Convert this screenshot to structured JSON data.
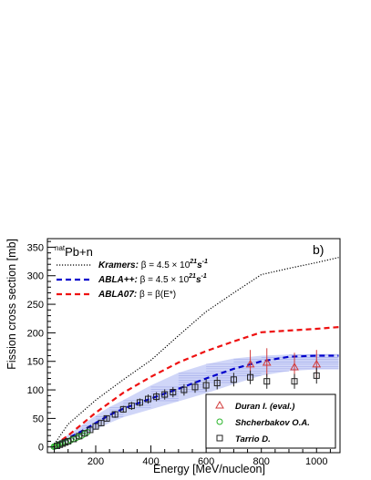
{
  "chart_data": {
    "type": "line",
    "panel_label": "b)",
    "annotation": {
      "sup": "nat",
      "main": "Pb+n"
    },
    "xlabel": "Energy [MeV/nucleon]",
    "ylabel": "Fission cross section [mb]",
    "xlim": [
      25,
      1085
    ],
    "ylim": [
      -10,
      365
    ],
    "xticks": [
      200,
      400,
      600,
      800,
      1000
    ],
    "yticks": [
      0,
      50,
      100,
      150,
      200,
      250,
      300,
      350
    ],
    "grid": false,
    "series": [
      {
        "label": "Kramers:",
        "formula": {
          "pre": "β = 4.5 × 10",
          "sup": "21",
          "post": "s",
          "sup2": "-1"
        },
        "style": "dotted",
        "color": "#000000",
        "x": [
          50,
          100,
          200,
          300,
          400,
          500,
          600,
          700,
          800,
          900,
          1000,
          1080
        ],
        "y": [
          5,
          40,
          82,
          118,
          152,
          195,
          237,
          270,
          302,
          313,
          323,
          332
        ]
      },
      {
        "label": "ABLA++:",
        "formula": {
          "pre": "β = 4.5 × 10",
          "sup": "21",
          "post": "s",
          "sup2": "-1"
        },
        "style": "dashed",
        "color": "#0000cc",
        "x": [
          50,
          100,
          150,
          200,
          250,
          300,
          400,
          500,
          600,
          700,
          800,
          900,
          1000,
          1080
        ],
        "y": [
          3,
          15,
          28,
          42,
          56,
          67,
          85,
          102,
          120,
          137,
          150,
          158,
          160,
          160
        ],
        "band_upper": [
          6,
          21,
          38,
          55,
          70,
          82,
          108,
          130,
          145,
          155,
          160,
          162,
          163,
          163
        ],
        "band_lower": [
          1,
          10,
          20,
          30,
          42,
          52,
          66,
          80,
          94,
          110,
          125,
          133,
          136,
          136
        ]
      },
      {
        "label": "ABLA07:",
        "formula": {
          "pre": "β = β(E*)",
          "sup": "",
          "post": "",
          "sup2": ""
        },
        "style": "dashed",
        "color": "#ee1111",
        "x": [
          50,
          100,
          200,
          300,
          400,
          500,
          600,
          700,
          800,
          900,
          1000,
          1080
        ],
        "y": [
          3,
          20,
          60,
          95,
          123,
          148,
          168,
          185,
          201,
          204,
          207,
          210
        ]
      }
    ],
    "points": [
      {
        "label": "Duran I. (eval.)",
        "marker": "triangle",
        "color": "#d23b3b",
        "x": [
          760,
          820,
          920,
          1000
        ],
        "y": [
          145,
          148,
          140,
          145
        ],
        "err": [
          25,
          25,
          25,
          25
        ]
      },
      {
        "label": "Shcherbakov O.A.",
        "marker": "circle",
        "color": "#2ab52a",
        "x": [
          48,
          52,
          56,
          60,
          65,
          70,
          75,
          80,
          90,
          100,
          110,
          120,
          130,
          140,
          150,
          160,
          170
        ],
        "y": [
          0.5,
          1,
          2,
          3,
          4,
          5,
          6,
          7,
          8,
          10,
          12,
          14,
          16,
          18,
          20,
          23,
          26
        ],
        "err": []
      },
      {
        "label": "Tarrio D.",
        "marker": "square",
        "color": "#222222",
        "x": [
          60,
          70,
          80,
          90,
          100,
          120,
          140,
          160,
          180,
          200,
          220,
          240,
          270,
          300,
          330,
          360,
          390,
          420,
          450,
          480,
          520,
          560,
          600,
          640,
          700,
          760,
          820,
          920,
          1000
        ],
        "y": [
          2,
          4,
          6,
          8,
          10,
          14,
          19,
          24,
          30,
          36,
          42,
          50,
          57,
          66,
          72,
          78,
          84,
          88,
          92,
          96,
          100,
          105,
          108,
          112,
          118,
          122,
          115,
          115,
          125
        ],
        "err": [
          1,
          1,
          1,
          1,
          2,
          2,
          3,
          3,
          4,
          4,
          5,
          5,
          6,
          6,
          7,
          7,
          8,
          8,
          9,
          9,
          10,
          10,
          11,
          11,
          12,
          12,
          13,
          13,
          14
        ]
      }
    ]
  }
}
